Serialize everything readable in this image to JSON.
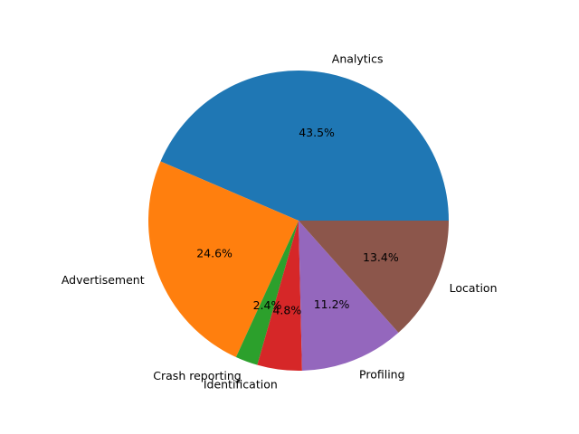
{
  "chart_data": {
    "type": "pie",
    "title": "",
    "categories": [
      "Analytics",
      "Advertisement",
      "Crash reporting",
      "Identification",
      "Profiling",
      "Location"
    ],
    "values": [
      43.5,
      24.6,
      2.4,
      4.8,
      11.2,
      13.4
    ],
    "percent_labels": [
      "43.5%",
      "24.6%",
      "2.4%",
      "4.8%",
      "11.2%",
      "13.4%"
    ],
    "colors": [
      "#1f77b4",
      "#ff7f0e",
      "#2ca02c",
      "#d62728",
      "#9467bd",
      "#8c564b"
    ],
    "start_angle_deg": 0,
    "direction": "counterclockwise",
    "legend": "none"
  }
}
